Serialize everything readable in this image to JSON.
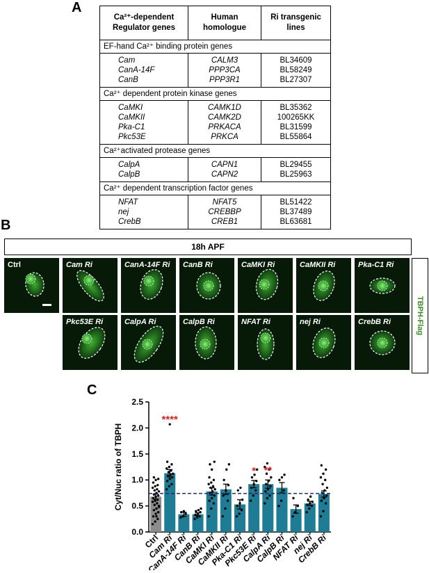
{
  "panel_a": {
    "letter": "A",
    "headers": [
      "Ca²⁺-dependent Regulator genes",
      "Human homologue",
      "Ri transgenic lines"
    ],
    "groups": [
      {
        "title": "EF-hand Ca²⁺ binding protein genes",
        "rows": [
          [
            "Cam",
            "CALM3",
            "BL34609"
          ],
          [
            "CanA-14F",
            "PPP3CA",
            "BL58249"
          ],
          [
            "CanB",
            "PPP3R1",
            "BL27307"
          ]
        ]
      },
      {
        "title": "Ca²⁺ dependent protein kinase genes",
        "rows": [
          [
            "CaMKI",
            "CAMK1D",
            "BL35362"
          ],
          [
            "CaMKII",
            "CAMK2D",
            "100265KK"
          ],
          [
            "Pka-C1",
            "PRKACA",
            "BL31599"
          ],
          [
            "Pkc53E",
            "PRKCA",
            "BL55864"
          ]
        ]
      },
      {
        "title": "Ca²⁺activated protease genes",
        "rows": [
          [
            "CalpA",
            "CAPN1",
            "BL29455"
          ],
          [
            "CalpB",
            "CAPN2",
            "BL25963"
          ]
        ]
      },
      {
        "title": "Ca²⁺ dependent transcription factor genes",
        "rows": [
          [
            "NFAT",
            "NFAT5",
            "BL51422"
          ],
          [
            "nej",
            "CREBBP",
            "BL37489"
          ],
          [
            "CrebB",
            "CREB1",
            "BL63681"
          ]
        ]
      }
    ]
  },
  "panel_b": {
    "letter": "B",
    "header": "18h APF",
    "side_label": "TBPH-Flag",
    "images": [
      "Ctrl",
      "Cam Ri",
      "CanA-14F Ri",
      "CanB Ri",
      "CaMKI Ri",
      "CaMKII Ri",
      "Pka-C1 Ri",
      "Pkc53E Ri",
      "CalpA Ri",
      "CalpB Ri",
      "NFAT Ri",
      "nej Ri",
      "CrebB Ri"
    ]
  },
  "panel_c": {
    "letter": "C"
  },
  "chart_data": {
    "type": "bar",
    "title": "",
    "xlabel": "",
    "ylabel": "Cyt/Nuc ratio of TBPH",
    "ylim": [
      0,
      2.5
    ],
    "yticks": [
      0.0,
      0.5,
      1.0,
      1.5,
      2.0,
      2.5
    ],
    "categories": [
      "Ctrl",
      "Cam Ri",
      "CanA-14F Ri",
      "CanB Ri",
      "CaMKI Ri",
      "CaMKII Ri",
      "Pka-C1 Ri",
      "Pkc53E Ri",
      "CalpA Ri",
      "CalpB Ri",
      "NFAT Ri",
      "nej Ri",
      "CrebB Ri"
    ],
    "values": [
      0.68,
      1.13,
      0.34,
      0.34,
      0.78,
      0.82,
      0.53,
      0.92,
      0.92,
      0.85,
      0.44,
      0.55,
      0.73
    ],
    "errors": [
      0.05,
      0.07,
      0.04,
      0.03,
      0.07,
      0.1,
      0.09,
      0.07,
      0.08,
      0.1,
      0.08,
      0.04,
      0.06
    ],
    "significance": [
      "",
      "****",
      "",
      "",
      "",
      "",
      "",
      "*",
      "**",
      "",
      "",
      "",
      ""
    ],
    "reference_line": 0.74,
    "colors": {
      "ctrl_bar": "#8c8c8c",
      "bar": "#1e7d95",
      "points": "#000000",
      "stars": "#e02020",
      "reference_line": "#1a2a6c"
    },
    "points": [
      [
        0.15,
        0.2,
        0.25,
        0.3,
        0.35,
        0.38,
        0.42,
        0.45,
        0.5,
        0.52,
        0.55,
        0.58,
        0.6,
        0.62,
        0.65,
        0.68,
        0.7,
        0.72,
        0.75,
        0.78,
        0.8,
        0.82,
        0.85,
        0.88,
        0.9,
        0.95,
        1.0,
        1.02,
        1.05,
        0.3,
        0.48
      ],
      [
        0.82,
        0.88,
        0.92,
        0.98,
        1.02,
        1.05,
        1.08,
        1.1,
        1.12,
        1.15,
        1.18,
        1.22,
        1.25,
        1.3,
        1.35,
        2.07
      ],
      [
        0.28,
        0.3,
        0.35,
        0.38,
        0.4
      ],
      [
        0.25,
        0.28,
        0.3,
        0.33,
        0.35,
        0.38,
        0.4,
        0.42,
        0.45
      ],
      [
        0.3,
        0.45,
        0.55,
        0.6,
        0.65,
        0.7,
        0.75,
        0.78,
        0.82,
        0.85,
        0.88,
        0.92,
        0.95,
        1.0,
        1.05,
        1.2,
        1.35,
        1.3
      ],
      [
        0.3,
        0.45,
        0.6,
        0.7,
        0.8,
        0.9,
        1.0,
        1.2,
        1.3
      ],
      [
        0.3,
        0.35,
        0.42,
        0.5,
        0.55,
        0.62,
        0.8,
        0.85
      ],
      [
        0.6,
        0.7,
        0.8,
        0.85,
        0.92,
        0.98,
        1.05,
        1.1,
        1.2
      ],
      [
        0.55,
        0.65,
        0.7,
        0.78,
        0.82,
        0.88,
        0.92,
        0.98,
        1.05,
        1.12,
        1.2,
        1.25,
        1.32
      ],
      [
        0.5,
        0.6,
        0.8,
        1.0,
        1.05,
        1.1
      ],
      [
        0.3,
        0.38,
        0.5,
        0.65
      ],
      [
        0.38,
        0.45,
        0.5,
        0.52,
        0.55,
        0.58,
        0.62,
        0.68
      ],
      [
        0.3,
        0.4,
        0.55,
        0.6,
        0.65,
        0.7,
        0.75,
        0.8,
        0.85,
        0.92,
        1.0,
        1.05,
        1.12,
        1.2,
        1.28
      ]
    ]
  }
}
